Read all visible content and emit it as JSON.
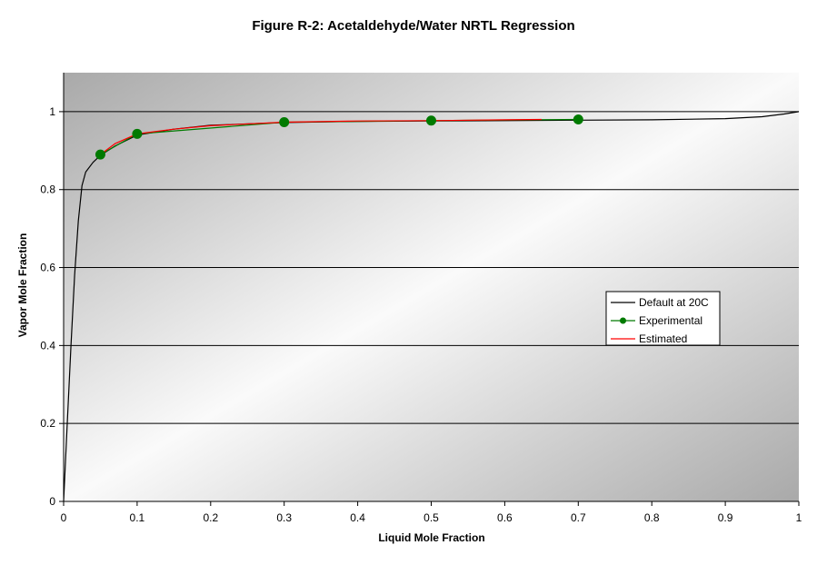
{
  "chart_data": {
    "type": "line",
    "title": "Figure R-2:  Acetaldehyde/Water NRTL Regression",
    "xlabel": "Liquid Mole Fraction",
    "ylabel": "Vapor Mole Fraction",
    "xlim": [
      0,
      1
    ],
    "ylim": [
      0,
      1.1
    ],
    "x_ticks": [
      "0",
      "0.1",
      "0.2",
      "0.3",
      "0.4",
      "0.5",
      "0.6",
      "0.7",
      "0.8",
      "0.9",
      "1"
    ],
    "y_ticks": [
      "0",
      "0.2",
      "0.4",
      "0.6",
      "0.8",
      "1"
    ],
    "grid": "horizontal",
    "legend_position": "right",
    "series": [
      {
        "name": "Default at 20C",
        "color": "#000000",
        "marker": "none",
        "x": [
          0,
          0.005,
          0.01,
          0.015,
          0.02,
          0.025,
          0.03,
          0.04,
          0.05,
          0.07,
          0.1,
          0.15,
          0.2,
          0.3,
          0.4,
          0.5,
          0.6,
          0.7,
          0.8,
          0.9,
          0.95,
          0.98,
          1.0
        ],
        "y": [
          0,
          0.2,
          0.4,
          0.58,
          0.72,
          0.81,
          0.845,
          0.87,
          0.888,
          0.912,
          0.94,
          0.955,
          0.965,
          0.972,
          0.975,
          0.976,
          0.977,
          0.978,
          0.979,
          0.982,
          0.987,
          0.994,
          1.0
        ]
      },
      {
        "name": "Experimental",
        "color": "#007a00",
        "marker": "circle",
        "x": [
          0.05,
          0.1,
          0.3,
          0.5,
          0.7
        ],
        "y": [
          0.89,
          0.943,
          0.973,
          0.977,
          0.98
        ]
      },
      {
        "name": "Estimated",
        "color": "#ff0000",
        "marker": "none",
        "x": [
          0.05,
          0.07,
          0.1,
          0.15,
          0.2,
          0.3,
          0.4,
          0.5,
          0.6,
          0.65
        ],
        "y": [
          0.89,
          0.918,
          0.943,
          0.955,
          0.964,
          0.973,
          0.976,
          0.977,
          0.979,
          0.98
        ]
      }
    ]
  }
}
